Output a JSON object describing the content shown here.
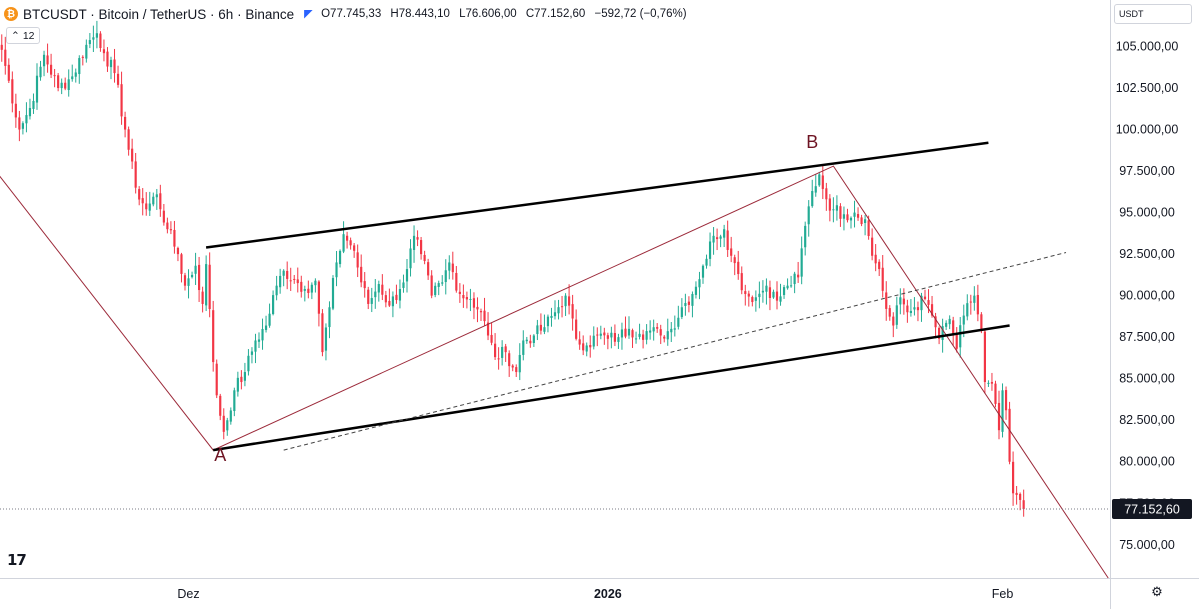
{
  "header": {
    "logo_glyph": "₿",
    "title": "BTCUSDT · Bitcoin / TetherUS · 6h · Binance",
    "ohlc": {
      "open": "O77.745,33",
      "high": "H78.443,10",
      "low": "L76.606,00",
      "close": "C77.152,60",
      "change": "−592,72 (−0,76%)"
    },
    "indicator_count": "12"
  },
  "currency_select": {
    "value": "USDT"
  },
  "last_price_label": "77.152,60",
  "tv_logo": "17",
  "settings_glyph": "⚙",
  "colors": {
    "up": "#22ab94",
    "down": "#f23645",
    "pattern_line": "#9c2a3a",
    "channel": "#000000",
    "label": "#6e1423",
    "price_tag": "#131722"
  },
  "chart_data": {
    "type": "candlestick",
    "title": "BTCUSDT · Bitcoin / TetherUS · 6h · Binance",
    "ylim": [
      73000,
      107800
    ],
    "y_ticks": [
      75000,
      77500,
      80000,
      82500,
      85000,
      87500,
      90000,
      92500,
      95000,
      97500,
      100000,
      102500,
      105000
    ],
    "y_tick_labels": [
      "75.000,00",
      "77.500,00",
      "80.000,00",
      "82.500,00",
      "85.000,00",
      "87.500,00",
      "90.000,00",
      "92.500,00",
      "95.000,00",
      "97.500,00",
      "100.000,00",
      "102.500,00",
      "105.000,00"
    ],
    "x_ticks": [
      {
        "label": "Dez",
        "index": 53
      },
      {
        "label": "2026",
        "index": 172
      },
      {
        "label": "Feb",
        "index": 284
      }
    ],
    "x_index_range": [
      -0.5,
      314.5
    ],
    "last_price": 77152.6,
    "key_closes": [
      [
        0,
        104800
      ],
      [
        5,
        100000
      ],
      [
        8,
        101300
      ],
      [
        12,
        104500
      ],
      [
        16,
        102500
      ],
      [
        20,
        103200
      ],
      [
        24,
        105100
      ],
      [
        27,
        105800
      ],
      [
        29,
        104600
      ],
      [
        32,
        103400
      ],
      [
        35,
        100000
      ],
      [
        38,
        96500
      ],
      [
        41,
        95200
      ],
      [
        44,
        96100
      ],
      [
        47,
        94000
      ],
      [
        50,
        92500
      ],
      [
        52,
        90600
      ],
      [
        55,
        91800
      ],
      [
        57,
        89500
      ],
      [
        58,
        91900
      ],
      [
        60,
        86000
      ],
      [
        61,
        84000
      ],
      [
        63,
        81800
      ],
      [
        66,
        84300
      ],
      [
        69,
        85400
      ],
      [
        72,
        87300
      ],
      [
        75,
        88200
      ],
      [
        78,
        90600
      ],
      [
        80,
        91500
      ],
      [
        83,
        91000
      ],
      [
        86,
        90400
      ],
      [
        89,
        90900
      ],
      [
        91,
        86600
      ],
      [
        93,
        89300
      ],
      [
        95,
        92000
      ],
      [
        97,
        93700
      ],
      [
        100,
        92700
      ],
      [
        102,
        90800
      ],
      [
        104,
        89500
      ],
      [
        107,
        90700
      ],
      [
        110,
        89400
      ],
      [
        113,
        90400
      ],
      [
        115,
        91600
      ],
      [
        117,
        93600
      ],
      [
        119,
        92500
      ],
      [
        122,
        90000
      ],
      [
        125,
        90800
      ],
      [
        127,
        92000
      ],
      [
        130,
        90100
      ],
      [
        133,
        89800
      ],
      [
        136,
        89000
      ],
      [
        138,
        87600
      ],
      [
        140,
        86300
      ],
      [
        143,
        86600
      ],
      [
        146,
        85400
      ],
      [
        148,
        87300
      ],
      [
        151,
        87600
      ],
      [
        154,
        88100
      ],
      [
        157,
        89000
      ],
      [
        160,
        90000
      ],
      [
        163,
        87400
      ],
      [
        166,
        87000
      ],
      [
        169,
        87600
      ],
      [
        172,
        87400
      ],
      [
        175,
        87500
      ],
      [
        178,
        88000
      ],
      [
        181,
        87700
      ],
      [
        184,
        87900
      ],
      [
        187,
        87600
      ],
      [
        190,
        88000
      ],
      [
        193,
        89300
      ],
      [
        196,
        90100
      ],
      [
        199,
        91800
      ],
      [
        202,
        93600
      ],
      [
        205,
        94000
      ],
      [
        207,
        92400
      ],
      [
        209,
        91300
      ],
      [
        211,
        90100
      ],
      [
        214,
        89900
      ],
      [
        217,
        90600
      ],
      [
        220,
        89700
      ],
      [
        223,
        90600
      ],
      [
        226,
        91100
      ],
      [
        228,
        94200
      ],
      [
        230,
        96300
      ],
      [
        232,
        97300
      ],
      [
        234,
        95800
      ],
      [
        236,
        95200
      ],
      [
        239,
        94900
      ],
      [
        242,
        95000
      ],
      [
        245,
        94600
      ],
      [
        247,
        92400
      ],
      [
        249,
        91600
      ],
      [
        251,
        89200
      ],
      [
        253,
        88200
      ],
      [
        255,
        89900
      ],
      [
        257,
        89000
      ],
      [
        259,
        89300
      ],
      [
        262,
        89800
      ],
      [
        264,
        88800
      ],
      [
        266,
        87400
      ],
      [
        269,
        88600
      ],
      [
        271,
        86800
      ],
      [
        273,
        88800
      ],
      [
        275,
        89600
      ],
      [
        276,
        90000
      ],
      [
        278,
        87900
      ],
      [
        279,
        84800
      ],
      [
        281,
        84700
      ],
      [
        283,
        81900
      ],
      [
        284,
        84300
      ],
      [
        285,
        83100
      ],
      [
        286,
        80000
      ],
      [
        287,
        78100
      ],
      [
        288,
        78000
      ],
      [
        289,
        77700
      ],
      [
        290,
        77152.6
      ]
    ],
    "overlays": [
      {
        "type": "zigzag",
        "points": [
          [
            -12,
            100300
          ],
          [
            60,
            80700
          ],
          [
            236,
            97800
          ],
          [
            314,
            73000
          ]
        ]
      },
      {
        "type": "channel-upper",
        "points": [
          [
            58,
            92900
          ],
          [
            280,
            99200
          ]
        ]
      },
      {
        "type": "channel-lower",
        "points": [
          [
            60,
            80700
          ],
          [
            286,
            88200
          ]
        ]
      },
      {
        "type": "midline-dashed",
        "points": [
          [
            80,
            80700
          ],
          [
            302,
            92600
          ]
        ]
      }
    ],
    "point_labels": [
      {
        "label": "A",
        "index": 62,
        "price": 80050
      },
      {
        "label": "B",
        "index": 230,
        "price": 98900
      }
    ]
  }
}
